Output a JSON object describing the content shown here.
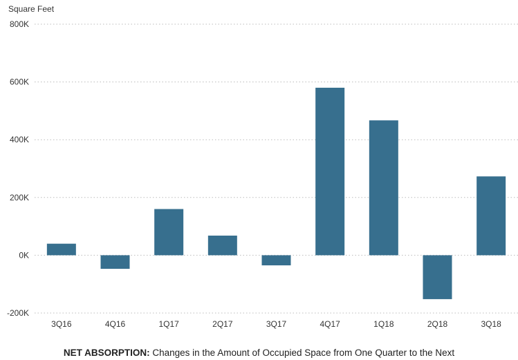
{
  "chart_data": {
    "type": "bar",
    "ylabel": "Square Feet",
    "xlabel": "",
    "categories": [
      "3Q16",
      "4Q16",
      "1Q17",
      "2Q17",
      "3Q17",
      "4Q17",
      "1Q18",
      "2Q18",
      "3Q18"
    ],
    "values": [
      40000,
      -47000,
      160000,
      68000,
      -35000,
      580000,
      467000,
      -152000,
      273000
    ],
    "ylim": [
      -200000,
      800000
    ],
    "yticks": [
      -200000,
      0,
      200000,
      400000,
      600000,
      800000
    ],
    "ytick_labels": [
      "-200K",
      "0K",
      "200K",
      "400K",
      "600K",
      "800K"
    ],
    "grid": true,
    "bar_color": "#376f8e",
    "grid_color": "#bbbbbb"
  },
  "caption": {
    "bold": "NET ABSORPTION:",
    "text": " Changes in the Amount of Occupied Space from One Quarter to the Next"
  }
}
